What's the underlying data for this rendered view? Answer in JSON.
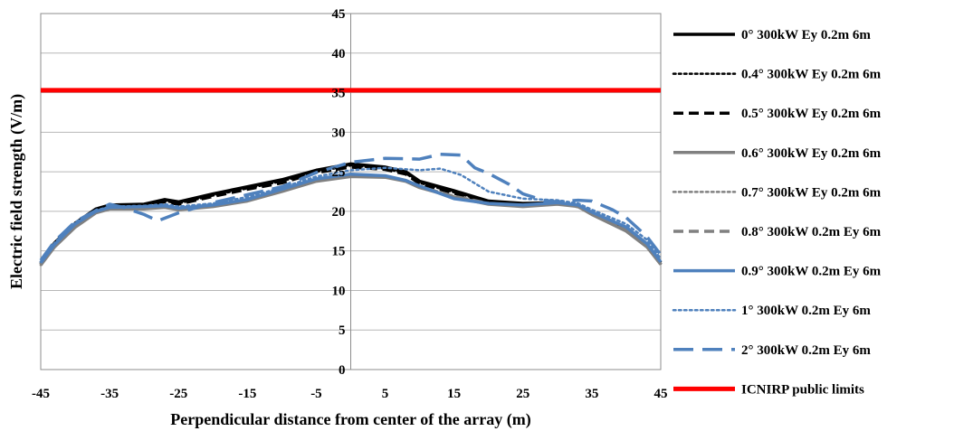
{
  "chart_data": {
    "type": "line",
    "title": "",
    "xlabel": "Perpendicular distance from center of the array (m)",
    "ylabel": "Electric field strength (V/m)",
    "xlim": [
      -45,
      45
    ],
    "ylim": [
      0,
      45
    ],
    "x_ticks": [
      -45,
      -35,
      -25,
      -15,
      -5,
      5,
      15,
      25,
      35,
      45
    ],
    "y_ticks": [
      0,
      5,
      10,
      15,
      20,
      25,
      30,
      35,
      40,
      45
    ],
    "grid": "horizontal",
    "legend_position": "right",
    "series": [
      {
        "name": "0° 300kW  Ey 0.2m 6m",
        "color": "#000000",
        "style": "solid",
        "points": [
          [
            -45,
            13.5
          ],
          [
            -43,
            16
          ],
          [
            -40,
            18.5
          ],
          [
            -37,
            20.3
          ],
          [
            -35,
            20.8
          ],
          [
            -30,
            20.9
          ],
          [
            -27,
            21.5
          ],
          [
            -25,
            21.2
          ],
          [
            -20,
            22.2
          ],
          [
            -15,
            23.1
          ],
          [
            -10,
            24.0
          ],
          [
            -5,
            25.2
          ],
          [
            0,
            26.0
          ],
          [
            5,
            25.6
          ],
          [
            8,
            25.0
          ],
          [
            10,
            23.8
          ],
          [
            15,
            22.6
          ],
          [
            20,
            21.3
          ],
          [
            25,
            21.0
          ],
          [
            30,
            21.1
          ],
          [
            33,
            20.7
          ],
          [
            35,
            19.8
          ],
          [
            40,
            17.7
          ],
          [
            43,
            15.8
          ],
          [
            45,
            13.5
          ]
        ]
      },
      {
        "name": "0.4° 300kW  Ey 0.2m 6m",
        "color": "#000000",
        "style": "dotted",
        "points": [
          [
            -45,
            13.4
          ],
          [
            -43,
            15.9
          ],
          [
            -40,
            18.4
          ],
          [
            -37,
            20.2
          ],
          [
            -35,
            20.7
          ],
          [
            -30,
            20.8
          ],
          [
            -27,
            21.3
          ],
          [
            -25,
            21.0
          ],
          [
            -20,
            22.0
          ],
          [
            -15,
            22.9
          ],
          [
            -10,
            23.8
          ],
          [
            -5,
            25.0
          ],
          [
            0,
            25.8
          ],
          [
            5,
            25.4
          ],
          [
            8,
            24.8
          ],
          [
            10,
            23.6
          ],
          [
            15,
            22.4
          ],
          [
            20,
            21.2
          ],
          [
            25,
            20.9
          ],
          [
            30,
            21.0
          ],
          [
            33,
            20.6
          ],
          [
            35,
            19.7
          ],
          [
            40,
            17.6
          ],
          [
            43,
            15.7
          ],
          [
            45,
            13.4
          ]
        ]
      },
      {
        "name": "0.5° 300kW Ey 0.2m 6m",
        "color": "#000000",
        "style": "dashed",
        "points": [
          [
            -45,
            13.4
          ],
          [
            -43,
            15.8
          ],
          [
            -40,
            18.3
          ],
          [
            -37,
            20.1
          ],
          [
            -35,
            20.6
          ],
          [
            -30,
            20.7
          ],
          [
            -27,
            21.2
          ],
          [
            -25,
            20.9
          ],
          [
            -20,
            21.9
          ],
          [
            -15,
            22.8
          ],
          [
            -10,
            23.6
          ],
          [
            -5,
            24.9
          ],
          [
            0,
            25.6
          ],
          [
            5,
            25.3
          ],
          [
            8,
            24.7
          ],
          [
            10,
            23.5
          ],
          [
            15,
            22.3
          ],
          [
            20,
            21.1
          ],
          [
            25,
            20.8
          ],
          [
            30,
            21.0
          ],
          [
            33,
            20.6
          ],
          [
            35,
            19.7
          ],
          [
            40,
            17.6
          ],
          [
            43,
            15.7
          ],
          [
            45,
            13.4
          ]
        ]
      },
      {
        "name": "0.6° 300kW Ey 0.2m 6m",
        "color": "#808080",
        "style": "solid",
        "points": [
          [
            -45,
            13.2
          ],
          [
            -43,
            15.5
          ],
          [
            -40,
            18.0
          ],
          [
            -37,
            19.8
          ],
          [
            -35,
            20.3
          ],
          [
            -30,
            20.3
          ],
          [
            -27,
            20.5
          ],
          [
            -25,
            20.2
          ],
          [
            -20,
            20.6
          ],
          [
            -15,
            21.3
          ],
          [
            -10,
            22.5
          ],
          [
            -5,
            23.8
          ],
          [
            0,
            24.4
          ],
          [
            5,
            24.3
          ],
          [
            8,
            23.8
          ],
          [
            10,
            23.0
          ],
          [
            15,
            21.8
          ],
          [
            20,
            20.9
          ],
          [
            25,
            20.6
          ],
          [
            30,
            20.9
          ],
          [
            33,
            20.6
          ],
          [
            35,
            19.6
          ],
          [
            40,
            17.5
          ],
          [
            43,
            15.5
          ],
          [
            45,
            13.3
          ]
        ]
      },
      {
        "name": "0.7° 300kW  Ey 0.2m 6m",
        "color": "#808080",
        "style": "dotted",
        "points": [
          [
            -45,
            13.2
          ],
          [
            -43,
            15.6
          ],
          [
            -40,
            18.1
          ],
          [
            -37,
            19.9
          ],
          [
            -35,
            20.4
          ],
          [
            -30,
            20.4
          ],
          [
            -27,
            20.6
          ],
          [
            -25,
            20.3
          ],
          [
            -20,
            20.7
          ],
          [
            -15,
            21.4
          ],
          [
            -10,
            22.6
          ],
          [
            -5,
            23.9
          ],
          [
            0,
            24.5
          ],
          [
            5,
            24.4
          ],
          [
            8,
            23.9
          ],
          [
            10,
            23.1
          ],
          [
            15,
            21.9
          ],
          [
            20,
            21.0
          ],
          [
            25,
            20.7
          ],
          [
            30,
            21.0
          ],
          [
            33,
            20.6
          ],
          [
            35,
            19.7
          ],
          [
            40,
            17.6
          ],
          [
            43,
            15.6
          ],
          [
            45,
            13.3
          ]
        ]
      },
      {
        "name": "0.8° 300kW 0.2m Ey 6m",
        "color": "#808080",
        "style": "dashed",
        "points": [
          [
            -45,
            13.3
          ],
          [
            -43,
            15.6
          ],
          [
            -40,
            18.1
          ],
          [
            -37,
            19.9
          ],
          [
            -35,
            20.4
          ],
          [
            -30,
            20.4
          ],
          [
            -27,
            20.6
          ],
          [
            -25,
            20.3
          ],
          [
            -20,
            20.8
          ],
          [
            -15,
            21.5
          ],
          [
            -10,
            22.7
          ],
          [
            -5,
            24.0
          ],
          [
            0,
            24.6
          ],
          [
            5,
            24.4
          ],
          [
            8,
            23.9
          ],
          [
            10,
            23.1
          ],
          [
            15,
            21.9
          ],
          [
            20,
            21.0
          ],
          [
            25,
            20.7
          ],
          [
            30,
            21.0
          ],
          [
            33,
            20.6
          ],
          [
            35,
            19.7
          ],
          [
            40,
            17.6
          ],
          [
            43,
            15.6
          ],
          [
            45,
            13.3
          ]
        ]
      },
      {
        "name": "0.9° 300kW 0.2m Ey 6m",
        "color": "#4F81BD",
        "style": "solid",
        "points": [
          [
            -45,
            13.5
          ],
          [
            -43,
            15.8
          ],
          [
            -40,
            18.4
          ],
          [
            -37,
            20.0
          ],
          [
            -35,
            20.5
          ],
          [
            -30,
            20.6
          ],
          [
            -27,
            20.7
          ],
          [
            -25,
            20.4
          ],
          [
            -20,
            20.8
          ],
          [
            -15,
            21.5
          ],
          [
            -10,
            22.8
          ],
          [
            -5,
            24.1
          ],
          [
            0,
            24.7
          ],
          [
            5,
            24.5
          ],
          [
            8,
            23.9
          ],
          [
            10,
            23.2
          ],
          [
            15,
            21.6
          ],
          [
            20,
            21.0
          ],
          [
            25,
            20.8
          ],
          [
            30,
            21.1
          ],
          [
            33,
            20.8
          ],
          [
            35,
            19.9
          ],
          [
            40,
            18.0
          ],
          [
            43,
            15.9
          ],
          [
            45,
            13.6
          ]
        ]
      },
      {
        "name": "1° 300kW 0.2m Ey 6m",
        "color": "#4F81BD",
        "style": "dotted",
        "points": [
          [
            -45,
            13.6
          ],
          [
            -43,
            16.0
          ],
          [
            -40,
            18.6
          ],
          [
            -37,
            20.1
          ],
          [
            -35,
            20.6
          ],
          [
            -30,
            20.7
          ],
          [
            -27,
            20.9
          ],
          [
            -25,
            20.6
          ],
          [
            -20,
            21.0
          ],
          [
            -15,
            21.8
          ],
          [
            -10,
            23.0
          ],
          [
            -5,
            24.4
          ],
          [
            0,
            25.2
          ],
          [
            5,
            25.5
          ],
          [
            10,
            25.2
          ],
          [
            13,
            25.4
          ],
          [
            16,
            24.6
          ],
          [
            20,
            22.5
          ],
          [
            25,
            21.6
          ],
          [
            30,
            21.4
          ],
          [
            33,
            21.0
          ],
          [
            35,
            20.2
          ],
          [
            40,
            18.4
          ],
          [
            43,
            16.4
          ],
          [
            45,
            14.0
          ]
        ]
      },
      {
        "name": "2° 300kW 0.2m Ey 6m",
        "color": "#4F81BD",
        "style": "longdash",
        "points": [
          [
            -45,
            13.8
          ],
          [
            -43,
            16.2
          ],
          [
            -40,
            18.7
          ],
          [
            -37,
            20.1
          ],
          [
            -35,
            20.9
          ],
          [
            -33,
            20.5
          ],
          [
            -30,
            19.6
          ],
          [
            -28,
            18.8
          ],
          [
            -25,
            19.8
          ],
          [
            -20,
            21.1
          ],
          [
            -15,
            22.1
          ],
          [
            -10,
            23.1
          ],
          [
            -5,
            24.9
          ],
          [
            0,
            26.2
          ],
          [
            5,
            26.7
          ],
          [
            10,
            26.6
          ],
          [
            13,
            27.2
          ],
          [
            16,
            27.1
          ],
          [
            18,
            25.5
          ],
          [
            20,
            24.8
          ],
          [
            23,
            23.4
          ],
          [
            25,
            22.2
          ],
          [
            28,
            21.4
          ],
          [
            30,
            21.2
          ],
          [
            33,
            21.4
          ],
          [
            35,
            21.3
          ],
          [
            38,
            20.2
          ],
          [
            40,
            19.2
          ],
          [
            43,
            16.8
          ],
          [
            45,
            14.5
          ]
        ]
      },
      {
        "name": "ICNIRP public limits",
        "color": "#FF0000",
        "style": "solid-thick",
        "points": [
          [
            -45,
            35.3
          ],
          [
            45,
            35.3
          ]
        ]
      }
    ]
  }
}
